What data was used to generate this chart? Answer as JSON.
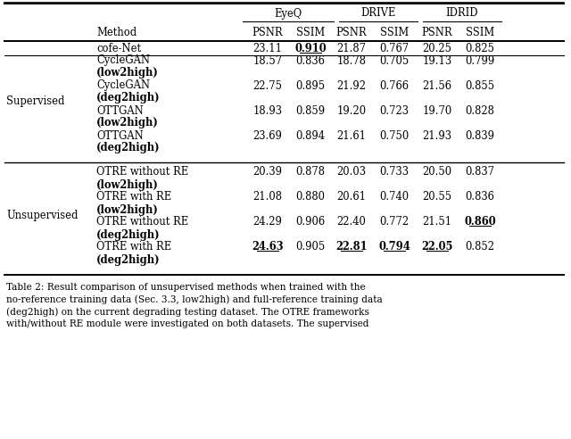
{
  "header_group1": "EyeQ",
  "header_group2": "DRIVE",
  "header_group3": "IDRID",
  "subheaders": [
    "PSNR",
    "SSIM",
    "PSNR",
    "SSIM",
    "PSNR",
    "SSIM"
  ],
  "col_method": "Method",
  "rows": [
    {
      "group": "Supervised",
      "method_line1": "cofe-Net",
      "method_line2": "",
      "values": [
        "23.11",
        "0.910",
        "21.87",
        "0.767",
        "20.25",
        "0.825"
      ],
      "bold": [
        false,
        true,
        false,
        false,
        false,
        false
      ],
      "underline": [
        false,
        true,
        false,
        false,
        false,
        false
      ]
    },
    {
      "group": "",
      "method_line1": "CycleGAN",
      "method_line2": "(low2high)",
      "values": [
        "18.57",
        "0.836",
        "18.78",
        "0.705",
        "19.13",
        "0.799"
      ],
      "bold": [
        false,
        false,
        false,
        false,
        false,
        false
      ],
      "underline": [
        false,
        false,
        false,
        false,
        false,
        false
      ]
    },
    {
      "group": "",
      "method_line1": "CycleGAN",
      "method_line2": "(deg2high)",
      "values": [
        "22.75",
        "0.895",
        "21.92",
        "0.766",
        "21.56",
        "0.855"
      ],
      "bold": [
        false,
        false,
        false,
        false,
        false,
        false
      ],
      "underline": [
        false,
        false,
        false,
        false,
        false,
        false
      ]
    },
    {
      "group": "",
      "method_line1": "OTTGAN",
      "method_line2": "(low2high)",
      "values": [
        "18.93",
        "0.859",
        "19.20",
        "0.723",
        "19.70",
        "0.828"
      ],
      "bold": [
        false,
        false,
        false,
        false,
        false,
        false
      ],
      "underline": [
        false,
        false,
        false,
        false,
        false,
        false
      ]
    },
    {
      "group": "",
      "method_line1": "OTTGAN",
      "method_line2": "(deg2high)",
      "values": [
        "23.69",
        "0.894",
        "21.61",
        "0.750",
        "21.93",
        "0.839"
      ],
      "bold": [
        false,
        false,
        false,
        false,
        false,
        false
      ],
      "underline": [
        false,
        false,
        false,
        false,
        false,
        false
      ]
    },
    {
      "group": "Unsupervised",
      "method_line1": "OTRE without RE",
      "method_line2": "(low2high)",
      "values": [
        "20.39",
        "0.878",
        "20.03",
        "0.733",
        "20.50",
        "0.837"
      ],
      "bold": [
        false,
        false,
        false,
        false,
        false,
        false
      ],
      "underline": [
        false,
        false,
        false,
        false,
        false,
        false
      ]
    },
    {
      "group": "",
      "method_line1": "OTRE with RE",
      "method_line2": "(low2high)",
      "values": [
        "21.08",
        "0.880",
        "20.61",
        "0.740",
        "20.55",
        "0.836"
      ],
      "bold": [
        false,
        false,
        false,
        false,
        false,
        false
      ],
      "underline": [
        false,
        false,
        false,
        false,
        false,
        false
      ]
    },
    {
      "group": "",
      "method_line1": "OTRE without RE",
      "method_line2": "(deg2high)",
      "values": [
        "24.29",
        "0.906",
        "22.40",
        "0.772",
        "21.51",
        "0.860"
      ],
      "bold": [
        false,
        false,
        false,
        false,
        false,
        true
      ],
      "underline": [
        false,
        false,
        false,
        false,
        false,
        true
      ]
    },
    {
      "group": "",
      "method_line1": "OTRE with RE",
      "method_line2": "(deg2high)",
      "values": [
        "24.63",
        "0.905",
        "22.81",
        "0.794",
        "22.05",
        "0.852"
      ],
      "bold": [
        true,
        false,
        true,
        true,
        true,
        false
      ],
      "underline": [
        true,
        false,
        true,
        true,
        true,
        false
      ]
    }
  ],
  "caption_lines": [
    "Table 2: Result comparison of unsupervised methods when trained with the",
    "no-reference training data (Sec. 3.3, low2high) and full-reference training data",
    "(deg2high) on the current degrading testing dataset. The OTRE frameworks",
    "with/without RE module were investigated on both datasets. The supervised"
  ],
  "background_color": "#ffffff"
}
